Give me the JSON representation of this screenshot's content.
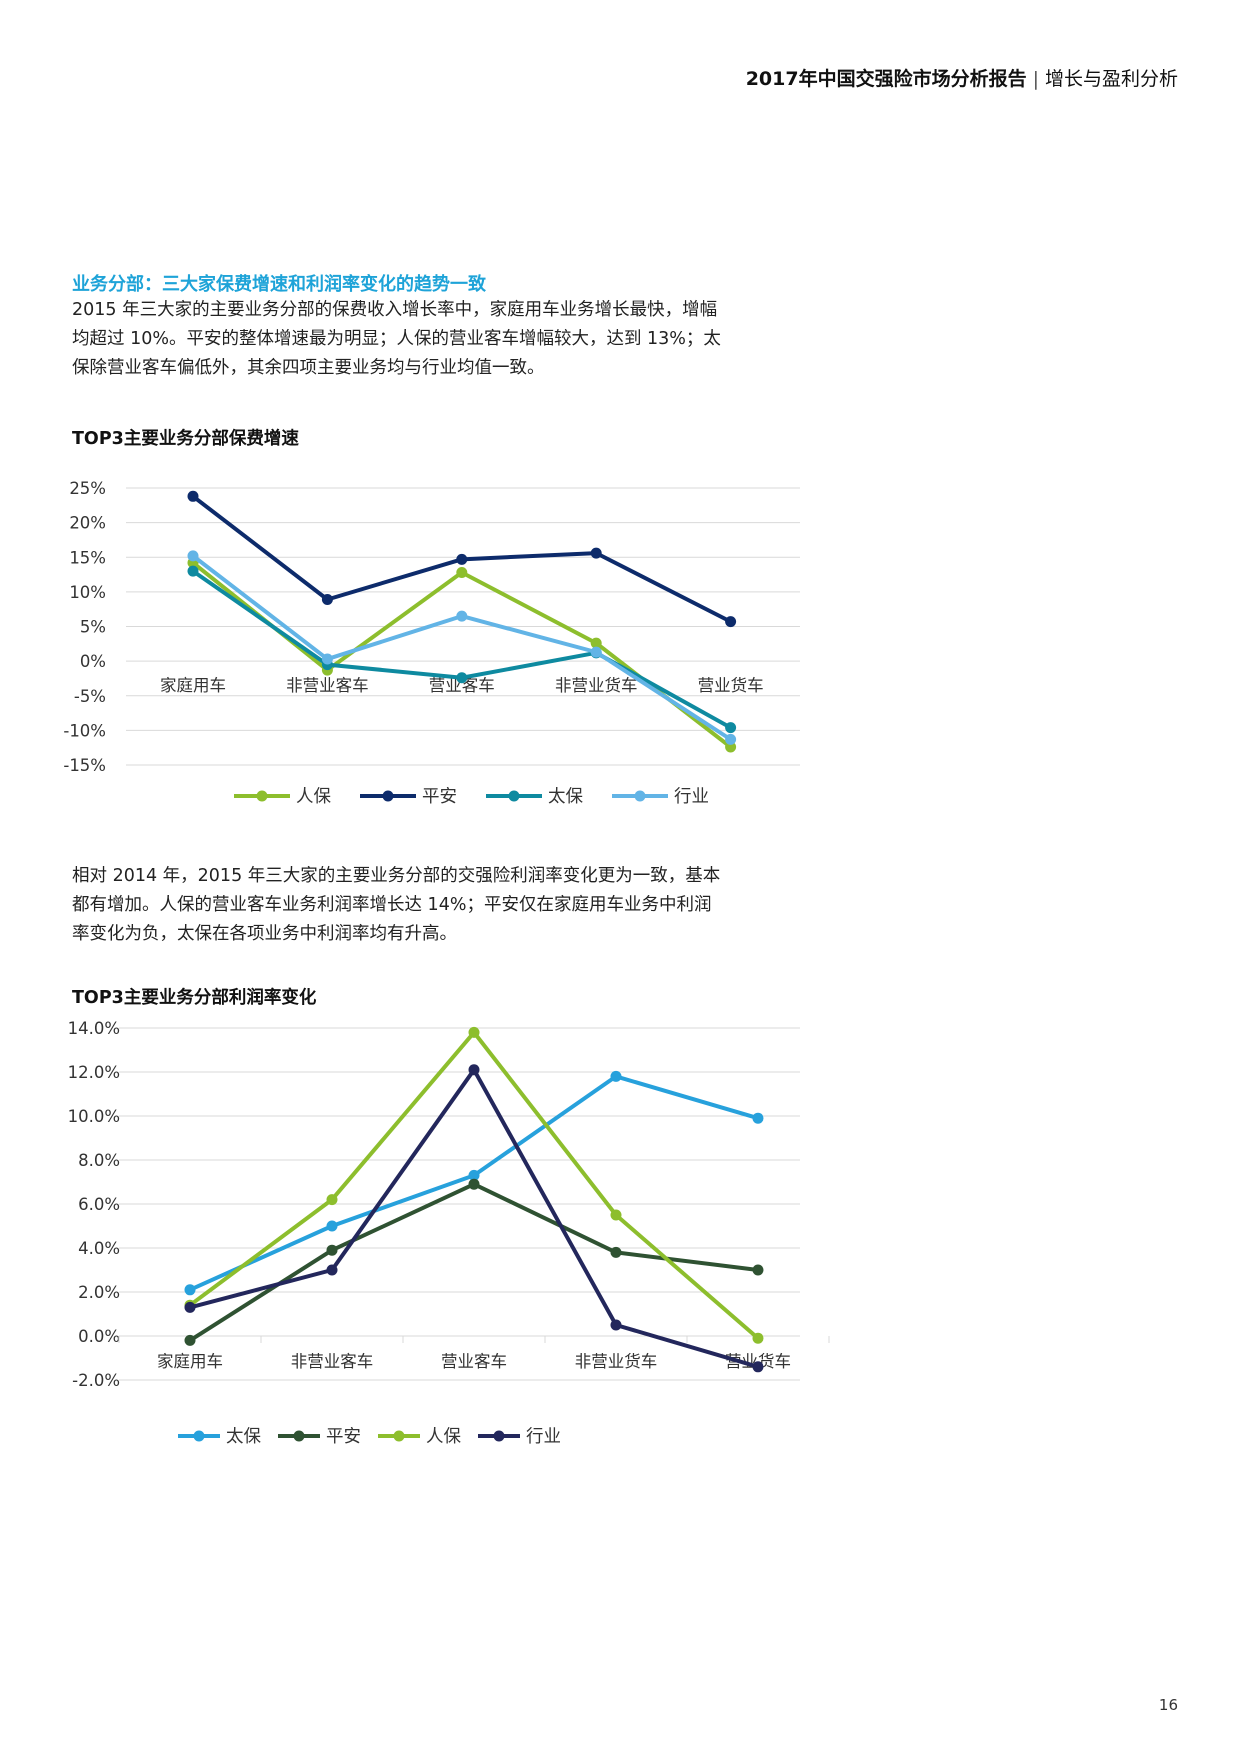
{
  "header": {
    "report_title": "2017年中国交强险市场分析报告",
    "separator": "|",
    "section": "增长与盈利分析"
  },
  "section_title": "业务分部：三大家保费增速和利润率变化的趋势一致",
  "paragraph1_lines": [
    "2015 年三大家的主要业务分部的保费收入增长率中，家庭用车业务增长最快，增幅",
    "均超过 10%。平安的整体增速最为明显；人保的营业客车增幅较大，达到 13%；太",
    "保除营业客车偏低外，其余四项主要业务均与行业均值一致。"
  ],
  "paragraph2_lines": [
    "相对 2014 年，2015 年三大家的主要业务分部的交强险利润率变化更为一致，基本",
    "都有增加。人保的营业客车业务利润率增长达 14%；平安仅在家庭用车业务中利润",
    "率变化为负，太保在各项业务中利润率均有升高。"
  ],
  "page_number": "16",
  "chart_data": [
    {
      "type": "line",
      "title": "TOP3主要业务分部保费增速",
      "categories": [
        "家庭用车",
        "非营业客车",
        "营业客车",
        "非营业货车",
        "营业货车"
      ],
      "y_ticks": [
        25,
        20,
        15,
        10,
        5,
        0,
        -5,
        -10,
        -15
      ],
      "y_tick_labels": [
        "25%",
        "20%",
        "15%",
        "10%",
        "5%",
        "0%",
        "-5%",
        "-10%",
        "-15%"
      ],
      "ylim": [
        -15,
        25
      ],
      "grid": true,
      "legend_position": "bottom",
      "series": [
        {
          "name": "人保",
          "color": "#8dbe2d",
          "values": [
            14.2,
            -1.3,
            12.8,
            2.6,
            -12.4
          ]
        },
        {
          "name": "平安",
          "color": "#0d2b6b",
          "values": [
            23.8,
            8.9,
            14.7,
            15.6,
            5.7
          ]
        },
        {
          "name": "太保",
          "color": "#0e8aa0",
          "values": [
            13.0,
            -0.5,
            -2.4,
            1.2,
            -9.6
          ]
        },
        {
          "name": "行业",
          "color": "#62b4e6",
          "values": [
            15.2,
            0.3,
            6.5,
            1.3,
            -11.3
          ]
        }
      ]
    },
    {
      "type": "line",
      "title": "TOP3主要业务分部利润率变化",
      "categories": [
        "家庭用车",
        "非营业客车",
        "营业客车",
        "非营业货车",
        "营业货车"
      ],
      "y_ticks": [
        14,
        12,
        10,
        8,
        6,
        4,
        2,
        0,
        -2
      ],
      "y_tick_labels": [
        "14.0%",
        "12.0%",
        "10.0%",
        "8.0%",
        "6.0%",
        "4.0%",
        "2.0%",
        "0.0%",
        "-2.0%"
      ],
      "ylim": [
        -2,
        14
      ],
      "grid": true,
      "legend_position": "bottom",
      "series": [
        {
          "name": "太保",
          "color": "#27a1dc",
          "values": [
            2.1,
            5.0,
            7.3,
            11.8,
            9.9
          ]
        },
        {
          "name": "平安",
          "color": "#2f5232",
          "values": [
            -0.2,
            3.9,
            6.9,
            3.8,
            3.0
          ]
        },
        {
          "name": "人保",
          "color": "#8dbe2d",
          "values": [
            1.4,
            6.2,
            13.8,
            5.5,
            -0.1
          ]
        },
        {
          "name": "行业",
          "color": "#23275c",
          "values": [
            1.3,
            3.0,
            12.1,
            0.5,
            -1.4
          ]
        }
      ]
    }
  ]
}
